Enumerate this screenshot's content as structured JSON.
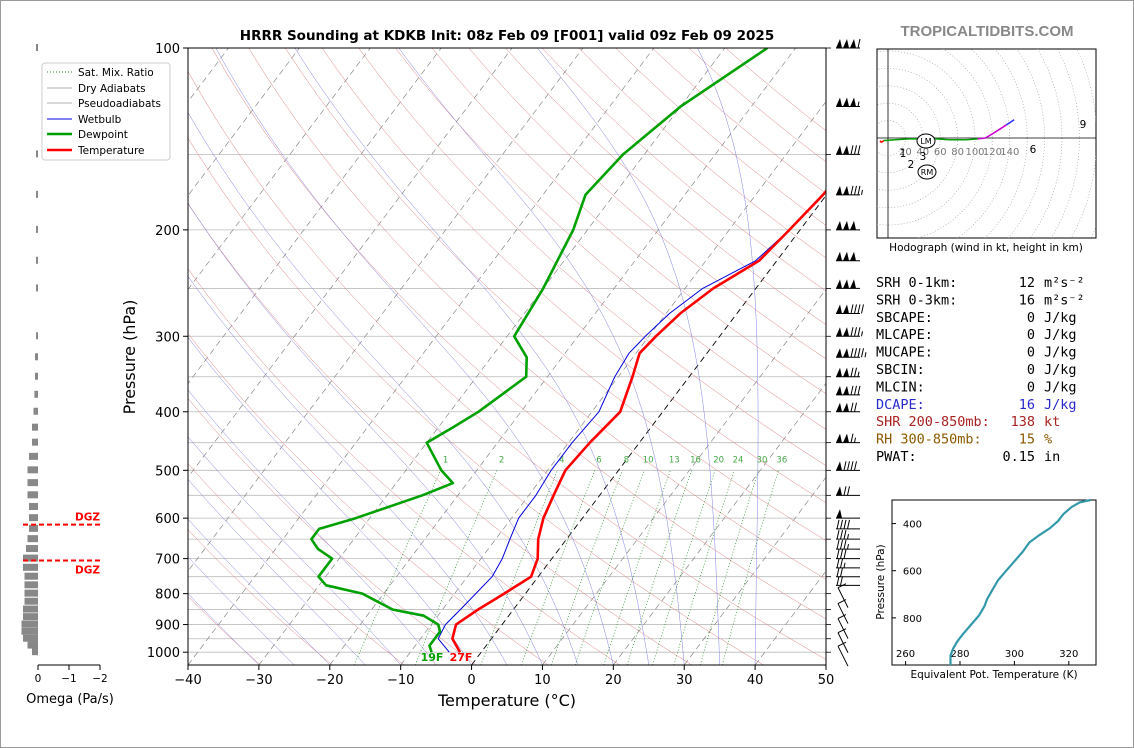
{
  "watermark": "TROPICALTIDBITS.COM",
  "chart_data": [
    {
      "type": "line",
      "title": "HRRR Sounding at KDKB Init: 08z Feb 09 [F001] valid 09z Feb 09 2025",
      "xlabel": "Temperature (°C)",
      "ylabel": "Pressure (hPa)",
      "xlim": [
        -40,
        50
      ],
      "ylim": [
        1050,
        100
      ],
      "yscale": "log",
      "grid": true,
      "x_ticks": [
        "−40",
        "−30",
        "−20",
        "−10",
        "0",
        "10",
        "20",
        "30",
        "40",
        "50"
      ],
      "y_ticks": [
        "100",
        "200",
        "300",
        "400",
        "500",
        "600",
        "700",
        "800",
        "900",
        "1000"
      ],
      "legend": {
        "placement": "top-left",
        "entries": [
          "Sat. Mix. Ratio",
          "Dry Adiabats",
          "Pseudoadiabats",
          "Wetbulb",
          "Dewpoint",
          "Temperature"
        ]
      },
      "mixing_ratio_labels": [
        "1",
        "2",
        "4",
        "6",
        "8",
        "10",
        "13",
        "16",
        "20",
        "24",
        "30",
        "36"
      ],
      "surface_labels": {
        "dewpoint": "19F",
        "temperature": "27F"
      },
      "series": [
        {
          "name": "Temperature",
          "color": "#ff0000",
          "points": [
            [
              -3,
              1000
            ],
            [
              -5.5,
              950
            ],
            [
              -6.5,
              900
            ],
            [
              -5,
              850
            ],
            [
              -3,
              800
            ],
            [
              -1,
              750
            ],
            [
              -2,
              700
            ],
            [
              -4,
              650
            ],
            [
              -5.5,
              600
            ],
            [
              -6.5,
              550
            ],
            [
              -7.5,
              500
            ],
            [
              -7,
              450
            ],
            [
              -6,
              400
            ],
            [
              -8,
              350
            ],
            [
              -9.5,
              320
            ],
            [
              -9,
              300
            ],
            [
              -8,
              275
            ],
            [
              -6,
              250
            ],
            [
              -2.5,
              225
            ],
            [
              -1.5,
              200
            ],
            [
              -0.5,
              175
            ],
            [
              0,
              150
            ],
            [
              0.5,
              125
            ],
            [
              1.5,
              110
            ],
            [
              2.5,
              100
            ]
          ]
        },
        {
          "name": "Dewpoint",
          "color": "#00a000",
          "points": [
            [
              -7,
              1000
            ],
            [
              -8,
              975
            ],
            [
              -8,
              950
            ],
            [
              -8,
              925
            ],
            [
              -9,
              900
            ],
            [
              -12,
              870
            ],
            [
              -17,
              850
            ],
            [
              -20,
              825
            ],
            [
              -23,
              800
            ],
            [
              -29,
              775
            ],
            [
              -31,
              750
            ],
            [
              -31,
              725
            ],
            [
              -31,
              700
            ],
            [
              -34,
              675
            ],
            [
              -36,
              650
            ],
            [
              -36,
              625
            ],
            [
              -32,
              600
            ],
            [
              -25,
              550
            ],
            [
              -22,
              525
            ],
            [
              -25,
              500
            ],
            [
              -30,
              450
            ],
            [
              -28,
              425
            ],
            [
              -26,
              400
            ],
            [
              -23,
              350
            ],
            [
              -25,
              325
            ],
            [
              -29,
              300
            ],
            [
              -30,
              250
            ],
            [
              -32,
              200
            ],
            [
              -34,
              175
            ],
            [
              -33,
              150
            ],
            [
              -30,
              125
            ],
            [
              -24,
              100
            ]
          ]
        },
        {
          "name": "Wetbulb",
          "color": "#0000dd",
          "points": [
            [
              -4.5,
              1000
            ],
            [
              -7.5,
              950
            ],
            [
              -8,
              900
            ],
            [
              -7.5,
              850
            ],
            [
              -7,
              800
            ],
            [
              -6.5,
              750
            ],
            [
              -7,
              700
            ],
            [
              -8,
              650
            ],
            [
              -9,
              600
            ],
            [
              -9,
              550
            ],
            [
              -9.5,
              500
            ],
            [
              -9.5,
              450
            ],
            [
              -9,
              400
            ],
            [
              -10.5,
              350
            ],
            [
              -11,
              320
            ],
            [
              -10.5,
              300
            ],
            [
              -9.5,
              275
            ],
            [
              -7.5,
              250
            ],
            [
              -3,
              225
            ],
            [
              -1.5,
              200
            ],
            [
              -0.5,
              175
            ],
            [
              0,
              150
            ],
            [
              0.5,
              125
            ],
            [
              1.5,
              110
            ],
            [
              2.5,
              100
            ]
          ]
        }
      ]
    },
    {
      "type": "line",
      "title": "",
      "xlabel": "Hodograph (wind in kt, height in km)",
      "ring_labels": [
        "20",
        "40",
        "60",
        "80",
        "100",
        "120",
        "140"
      ],
      "storm_motion_labels": [
        "LM",
        "RM"
      ],
      "height_labels": [
        "1",
        "2",
        "3",
        "6",
        "9"
      ],
      "hodograph_uv": [
        [
          -9,
          -3
        ],
        [
          -8,
          -5
        ],
        [
          -6,
          -4
        ],
        [
          -5,
          -3
        ],
        [
          8,
          -2
        ],
        [
          25,
          -1
        ],
        [
          40,
          -1
        ],
        [
          55,
          -1
        ],
        [
          70,
          -2
        ],
        [
          90,
          -2
        ],
        [
          103,
          -1
        ],
        [
          112,
          0
        ],
        [
          122,
          6
        ],
        [
          136,
          15
        ],
        [
          145,
          21
        ]
      ]
    },
    {
      "type": "line",
      "title": "",
      "xlabel": "Equivalent Pot. Temperature (K)",
      "ylabel": "Pressure (hPa)",
      "xlim": [
        255,
        330
      ],
      "ylim": [
        1000,
        300
      ],
      "x_ticks": [
        "260",
        "280",
        "300",
        "320"
      ],
      "y_ticks": [
        "400",
        "600",
        "800"
      ],
      "color": "#3399aa",
      "points": [
        [
          276.5,
          1000
        ],
        [
          276.5,
          960
        ],
        [
          277.5,
          930
        ],
        [
          279,
          900
        ],
        [
          281,
          870
        ],
        [
          284,
          830
        ],
        [
          287,
          790
        ],
        [
          289,
          750
        ],
        [
          290,
          720
        ],
        [
          292,
          680
        ],
        [
          294,
          640
        ],
        [
          297,
          600
        ],
        [
          300,
          560
        ],
        [
          303,
          520
        ],
        [
          305.5,
          480
        ],
        [
          309,
          450
        ],
        [
          313,
          420
        ],
        [
          316,
          390
        ],
        [
          318,
          360
        ],
        [
          321,
          330
        ],
        [
          324,
          310
        ],
        [
          328,
          300
        ]
      ]
    },
    {
      "type": "bar",
      "title": "",
      "xlabel": "Omega (Pa/s)",
      "x_ticks": [
        "0",
        "−1",
        "−2"
      ],
      "dgz_labels": [
        "DGZ",
        "DGZ"
      ],
      "dgz_pressures": [
        615,
        705
      ],
      "omega_profile": [
        [
          1000,
          0.2
        ],
        [
          975,
          0.35
        ],
        [
          950,
          0.5
        ],
        [
          925,
          0.55
        ],
        [
          900,
          0.55
        ],
        [
          875,
          0.5
        ],
        [
          850,
          0.5
        ],
        [
          825,
          0.45
        ],
        [
          800,
          0.45
        ],
        [
          775,
          0.45
        ],
        [
          750,
          0.45
        ],
        [
          725,
          0.5
        ],
        [
          700,
          0.5
        ],
        [
          675,
          0.4
        ],
        [
          650,
          0.35
        ],
        [
          625,
          0.3
        ],
        [
          600,
          0.3
        ],
        [
          575,
          0.3
        ],
        [
          550,
          0.35
        ],
        [
          525,
          0.35
        ],
        [
          500,
          0.35
        ],
        [
          475,
          0.3
        ],
        [
          450,
          0.2
        ],
        [
          425,
          0.2
        ],
        [
          400,
          0.15
        ],
        [
          375,
          0.12
        ],
        [
          350,
          0.1
        ],
        [
          325,
          0.1
        ],
        [
          300,
          0.05
        ],
        [
          250,
          0.05
        ],
        [
          225,
          0.05
        ],
        [
          200,
          0.05
        ],
        [
          175,
          0.05
        ],
        [
          150,
          0.05
        ],
        [
          100,
          0.05
        ]
      ]
    }
  ],
  "indices": [
    {
      "label": "SRH 0-1km:",
      "value": "12",
      "unit": "m²s⁻²",
      "color": "#000000"
    },
    {
      "label": "SRH 0-3km:",
      "value": "16",
      "unit": "m²s⁻²",
      "color": "#000000"
    },
    {
      "label": "SBCAPE:",
      "value": "0",
      "unit": "J/kg",
      "color": "#000000"
    },
    {
      "label": "MLCAPE:",
      "value": "0",
      "unit": "J/kg",
      "color": "#000000"
    },
    {
      "label": "MUCAPE:",
      "value": "0",
      "unit": "J/kg",
      "color": "#000000"
    },
    {
      "label": "SBCIN:",
      "value": "0",
      "unit": "J/kg",
      "color": "#000000"
    },
    {
      "label": "MLCIN:",
      "value": "0",
      "unit": "J/kg",
      "color": "#000000"
    },
    {
      "label": "DCAPE:",
      "value": "16",
      "unit": "J/kg",
      "color": "#2a2acc"
    },
    {
      "label": "SHR 200-850mb:",
      "value": "138",
      "unit": "kt",
      "color": "#aa2222"
    },
    {
      "label": "RH 300-850mb:",
      "value": "15",
      "unit": "%",
      "color": "#8a5a00"
    },
    {
      "label": "PWAT:",
      "value": "0.15",
      "unit": "in",
      "color": "#000000"
    }
  ],
  "wind_barbs": [
    {
      "p": 100,
      "kt": 160
    },
    {
      "p": 125,
      "kt": 155
    },
    {
      "p": 150,
      "kt": 130
    },
    {
      "p": 175,
      "kt": 135
    },
    {
      "p": 200,
      "kt": 150
    },
    {
      "p": 225,
      "kt": 150
    },
    {
      "p": 250,
      "kt": 150
    },
    {
      "p": 275,
      "kt": 140
    },
    {
      "p": 300,
      "kt": 135
    },
    {
      "p": 325,
      "kt": 145
    },
    {
      "p": 350,
      "kt": 125
    },
    {
      "p": 375,
      "kt": 130
    },
    {
      "p": 400,
      "kt": 120
    },
    {
      "p": 450,
      "kt": 115
    },
    {
      "p": 500,
      "kt": 90
    },
    {
      "p": 550,
      "kt": 70
    },
    {
      "p": 600,
      "kt": 50
    },
    {
      "p": 625,
      "kt": 40
    },
    {
      "p": 650,
      "kt": 35
    },
    {
      "p": 675,
      "kt": 35
    },
    {
      "p": 700,
      "kt": 30
    },
    {
      "p": 725,
      "kt": 25
    },
    {
      "p": 750,
      "kt": 20
    },
    {
      "p": 775,
      "kt": 20
    },
    {
      "p": 800,
      "kt": 15
    },
    {
      "p": 850,
      "kt": 15
    },
    {
      "p": 900,
      "kt": 10
    },
    {
      "p": 950,
      "kt": 10
    },
    {
      "p": 1000,
      "kt": 5
    }
  ]
}
